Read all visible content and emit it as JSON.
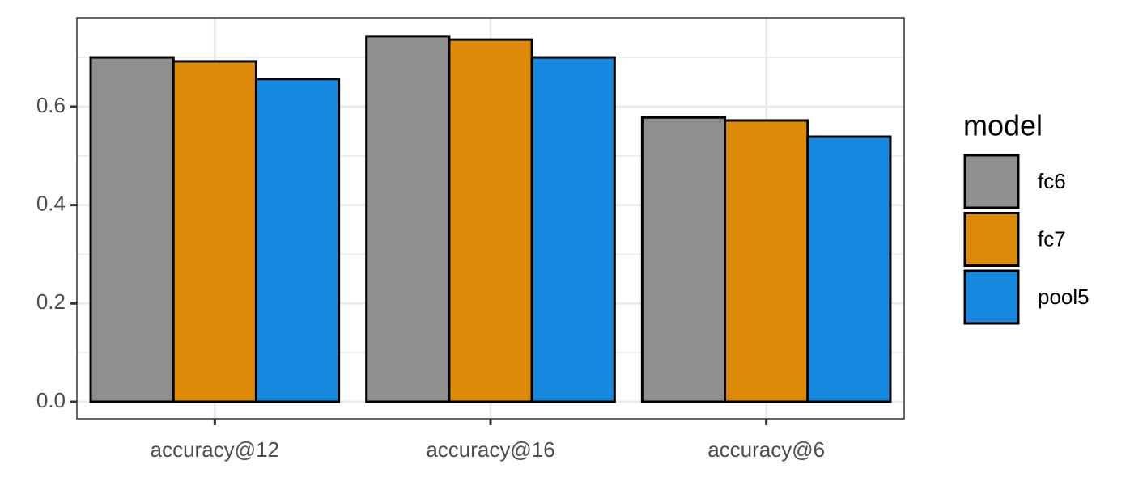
{
  "chart_data": {
    "type": "bar",
    "categories": [
      "accuracy@12",
      "accuracy@16",
      "accuracy@6"
    ],
    "series": [
      {
        "name": "fc6",
        "color": "#8f8f8f",
        "values": [
          0.7,
          0.743,
          0.578
        ]
      },
      {
        "name": "fc7",
        "color": "#dd8b08",
        "values": [
          0.692,
          0.736,
          0.572
        ]
      },
      {
        "name": "pool5",
        "color": "#1589e0",
        "values": [
          0.656,
          0.7,
          0.539
        ]
      }
    ],
    "legend_title": "model",
    "legend_position": "right",
    "ylim": [
      -0.0345,
      0.7806
    ],
    "yticks": [
      {
        "value": 0,
        "label": "0.0"
      },
      {
        "value": 0.2,
        "label": "0.2"
      },
      {
        "value": 0.4,
        "label": "0.4"
      },
      {
        "value": 0.6,
        "label": "0.6"
      }
    ],
    "grid": true
  }
}
